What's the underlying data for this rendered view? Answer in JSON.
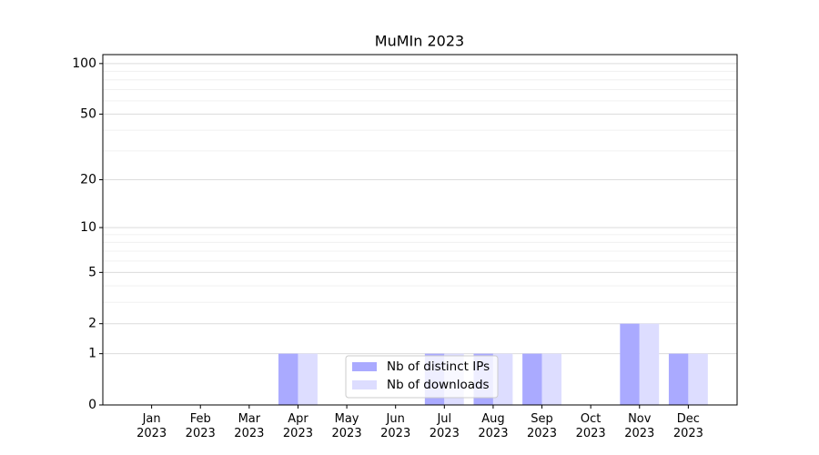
{
  "chart_data": {
    "type": "bar",
    "title": "MuMIn 2023",
    "categories": [
      "Jan\n2023",
      "Feb\n2023",
      "Mar\n2023",
      "Apr\n2023",
      "May\n2023",
      "Jun\n2023",
      "Jul\n2023",
      "Aug\n2023",
      "Sep\n2023",
      "Oct\n2023",
      "Nov\n2023",
      "Dec\n2023"
    ],
    "series": [
      {
        "name": "Nb of distinct IPs",
        "color": "#aaaaff",
        "values": [
          0,
          0,
          0,
          1,
          0,
          0,
          1,
          1,
          1,
          0,
          2,
          1
        ]
      },
      {
        "name": "Nb of downloads",
        "color": "#ddddff",
        "values": [
          0,
          0,
          0,
          1,
          0,
          0,
          1,
          1,
          1,
          0,
          2,
          1
        ]
      }
    ],
    "yscale": "log1p",
    "ylim": [
      0,
      113
    ],
    "yticks": [
      0,
      1,
      2,
      5,
      10,
      20,
      50,
      100
    ],
    "yminorticks": [
      3,
      4,
      6,
      7,
      8,
      9,
      30,
      40,
      60,
      70,
      80,
      90
    ],
    "grid": true,
    "legend": "lower center"
  }
}
